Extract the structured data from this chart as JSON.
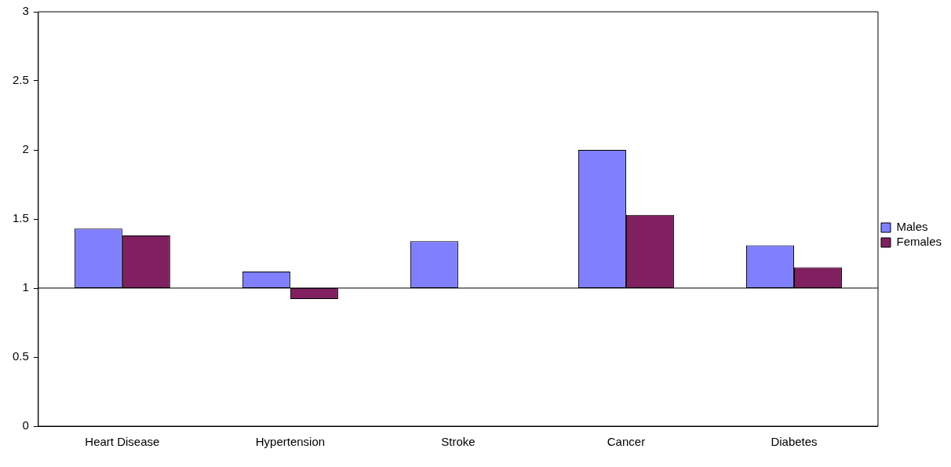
{
  "chart_data": {
    "type": "bar",
    "categories": [
      "Heart Disease",
      "Hypertension",
      "Stroke",
      "Cancer",
      "Diabetes"
    ],
    "series": [
      {
        "name": "Males",
        "color": "#8080ff",
        "base": [
          1,
          1,
          1,
          1,
          1
        ],
        "values": [
          0.43,
          0.12,
          0.34,
          1.0,
          0.31
        ]
      },
      {
        "name": "Females",
        "color": "#802060",
        "base": [
          1,
          1,
          null,
          1,
          1
        ],
        "values": [
          0.38,
          -0.08,
          null,
          0.53,
          0.15
        ]
      }
    ],
    "ylim": [
      0,
      3
    ],
    "yticks": [
      0,
      0.5,
      1,
      1.5,
      2,
      2.5,
      3
    ],
    "ref_lines": [
      {
        "axis": "y",
        "value": 1,
        "color": "#000000"
      }
    ],
    "grid": false,
    "legend": "right"
  }
}
